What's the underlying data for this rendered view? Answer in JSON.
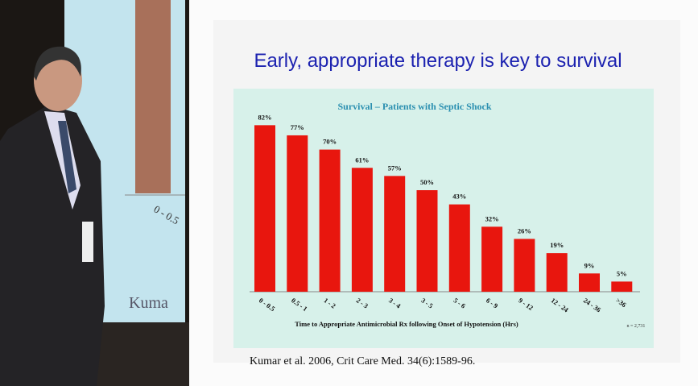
{
  "background_slide": {
    "category": "0 - 0.5",
    "citation": "Kuma"
  },
  "slide": {
    "title": "Early, appropriate therapy is key to survival",
    "citation": "Kumar et al. 2006, Crit Care Med. 34(6):1589-96."
  },
  "chart_data": {
    "type": "bar",
    "title": "Survival – Patients with Septic Shock",
    "x_label": "Time to Appropriate Antimicrobial Rx following Onset of Hypotension (Hrs)",
    "note": "n = 2,731",
    "categories": [
      "0 - 0.5",
      "0.5 - 1",
      "1 - 2",
      "2 - 3",
      "3 - 4",
      "3 - 5",
      "5 - 6",
      "6 - 9",
      "9 - 12",
      "12 - 24",
      "24 - 36",
      ">36"
    ],
    "values": [
      82,
      77,
      70,
      61,
      57,
      50,
      43,
      32,
      26,
      19,
      9,
      5
    ],
    "value_labels": [
      "82%",
      "77%",
      "70%",
      "61%",
      "57%",
      "50%",
      "43%",
      "32%",
      "26%",
      "19%",
      "9%",
      "5%"
    ],
    "color": "#e8160e"
  }
}
